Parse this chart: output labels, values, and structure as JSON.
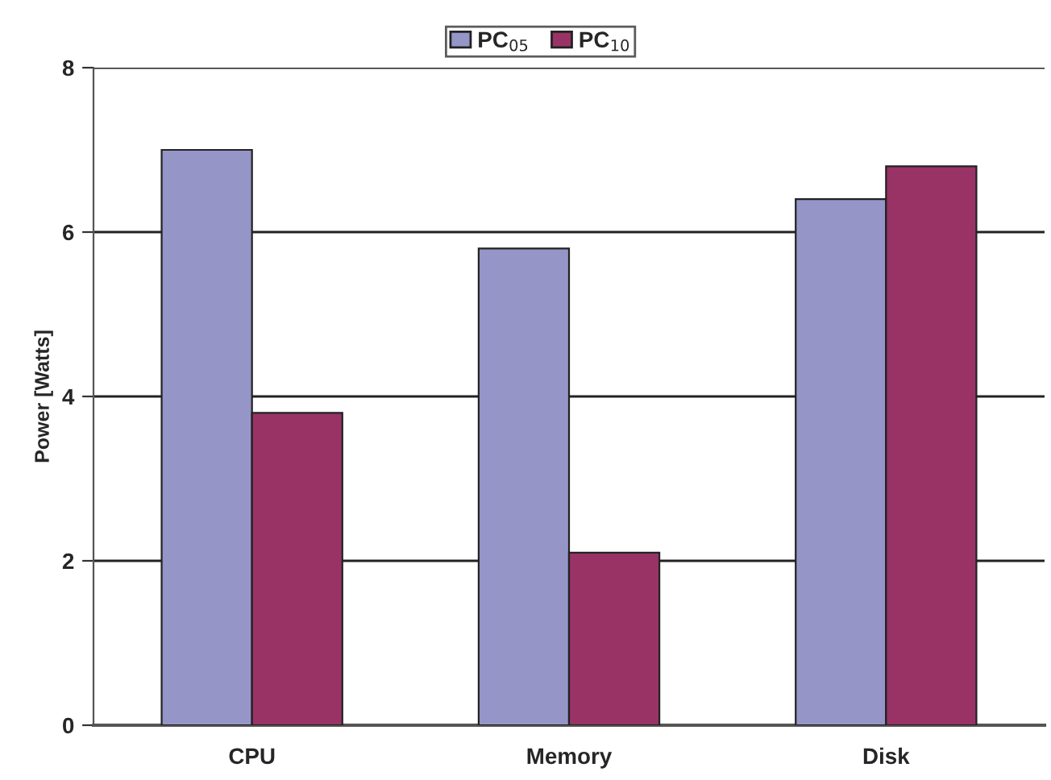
{
  "chart_data": {
    "type": "bar",
    "ylabel": "Power [Watts]",
    "categories": [
      "CPU",
      "Memory",
      "Disk"
    ],
    "series": [
      {
        "name": "PC$_{05}$",
        "color": "#9595c8",
        "values": [
          7.0,
          5.8,
          6.4
        ]
      },
      {
        "name": "PC$_{10}$",
        "color": "#993366",
        "values": [
          3.8,
          2.1,
          6.8
        ]
      }
    ],
    "ylim": [
      0,
      8
    ],
    "yticks": [
      0,
      2,
      4,
      6,
      8
    ],
    "grid": "y",
    "legend": "top"
  }
}
